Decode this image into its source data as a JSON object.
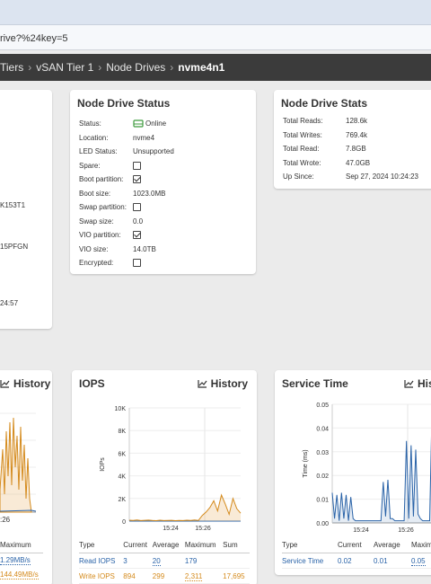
{
  "browser": {
    "url_fragment": "rive?%24key=5"
  },
  "breadcrumb": {
    "items": [
      "Tiers",
      "vSAN Tier 1",
      "Node Drives"
    ],
    "current": "nvme4n1"
  },
  "left_card": {
    "values": [
      "K153T1",
      "15PFGN",
      "24:57"
    ]
  },
  "status_card": {
    "title": "Node Drive Status",
    "rows": [
      {
        "label": "Status:",
        "value": "Online"
      },
      {
        "label": "Location:",
        "value": "nvme4"
      },
      {
        "label": "LED Status:",
        "value": "Unsupported"
      },
      {
        "label": "Spare:",
        "checked": false
      },
      {
        "label": "Boot partition:",
        "checked": true
      },
      {
        "label": "Boot size:",
        "value": "1023.0MB"
      },
      {
        "label": "Swap partition:",
        "checked": false
      },
      {
        "label": "Swap size:",
        "value": "0.0"
      },
      {
        "label": "VIO partition:",
        "checked": true
      },
      {
        "label": "VIO size:",
        "value": "14.0TB"
      },
      {
        "label": "Encrypted:",
        "checked": false
      }
    ]
  },
  "stats_card": {
    "title": "Node Drive Stats",
    "rows": [
      {
        "label": "Total Reads:",
        "value": "128.6k"
      },
      {
        "label": "Total Writes:",
        "value": "769.4k"
      },
      {
        "label": "Total Read:",
        "value": "7.8GB"
      },
      {
        "label": "Total Wrote:",
        "value": "47.0GB"
      },
      {
        "label": "Up Since:",
        "value": "Sep 27, 2024 10:24:23"
      }
    ]
  },
  "throughput_card": {
    "history_label": "History",
    "x_tick": ":26",
    "table": {
      "header": "Maximum",
      "read": "1.29MB/s",
      "write": "144.49MB/s"
    }
  },
  "iops_card": {
    "title": "IOPS",
    "history_label": "History",
    "y_axis_label": "IOPs",
    "table": {
      "headers": [
        "Type",
        "Current",
        "Average",
        "Maximum",
        "Sum"
      ],
      "rows": [
        [
          "Read IOPS",
          "3",
          "20",
          "179",
          ""
        ],
        [
          "Write IOPS",
          "894",
          "299",
          "2,311",
          "17,695"
        ]
      ]
    }
  },
  "service_card": {
    "title": "Service Time",
    "history_label": "His",
    "y_axis_label": "Time (ms)",
    "table": {
      "headers": [
        "Type",
        "Current",
        "Average",
        "Maxim"
      ],
      "rows": [
        [
          "Service Time",
          "0.02",
          "0.01",
          "0.05"
        ]
      ]
    }
  },
  "chart_data": [
    {
      "type": "area",
      "title": "IOPS",
      "ylabel": "IOPs",
      "ylim": [
        0,
        10000
      ],
      "y_ticks": [
        "0",
        "2K",
        "4K",
        "6K",
        "8K",
        "10K"
      ],
      "x_ticks": [
        "15:24",
        "15:26"
      ],
      "series": [
        {
          "name": "Read IOPS",
          "color": "#2a63a8",
          "values": [
            0,
            0,
            0,
            0,
            0,
            0,
            0,
            0,
            0,
            0,
            0,
            0,
            0,
            0,
            0,
            0,
            0,
            0,
            0,
            0,
            0,
            0,
            0,
            0,
            0,
            0,
            0,
            0,
            0,
            0
          ]
        },
        {
          "name": "Write IOPS",
          "color": "#d48a1c",
          "values": [
            80,
            60,
            100,
            50,
            70,
            90,
            60,
            40,
            80,
            50,
            60,
            70,
            40,
            60,
            50,
            80,
            60,
            100,
            60,
            500,
            800,
            1200,
            1800,
            900,
            2300,
            1500,
            600,
            2000,
            1100,
            700
          ]
        }
      ]
    },
    {
      "type": "area",
      "title": "Service Time",
      "ylabel": "Time (ms)",
      "ylim": [
        0,
        0.055
      ],
      "y_ticks": [
        "0.00",
        "0.01",
        "0.02",
        "0.03",
        "0.04",
        "0.05"
      ],
      "x_ticks": [
        "15:24",
        "15:26"
      ],
      "series": [
        {
          "name": "Service Time",
          "color": "#2a63a8",
          "values": [
            0.014,
            0.002,
            0.013,
            0.001,
            0.014,
            0.002,
            0.013,
            0.001,
            0.012,
            0.002,
            0.001,
            0.001,
            0.001,
            0.001,
            0.001,
            0.001,
            0.001,
            0.001,
            0.001,
            0.001,
            0.001,
            0.001,
            0.019,
            0.003,
            0.02,
            0.002,
            0.002,
            0.001,
            0.001,
            0.001,
            0.001,
            0.001,
            0.038,
            0.002,
            0.036,
            0.003,
            0.034,
            0.004,
            0.002,
            0.001,
            0.001,
            0.001,
            0.001,
            0.052,
            0.025,
            0.03,
            0.026,
            0.024,
            0.028
          ]
        }
      ]
    }
  ]
}
